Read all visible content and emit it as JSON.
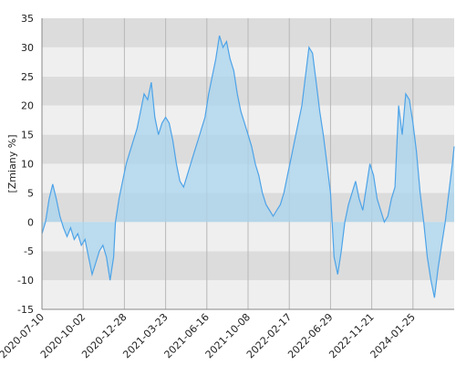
{
  "chart_data": {
    "type": "area",
    "ylabel": "[Zmiany %]",
    "xlabel": "",
    "ylim": [
      -15,
      35
    ],
    "yticks": [
      -15,
      -10,
      -5,
      0,
      5,
      10,
      15,
      20,
      25,
      30,
      35
    ],
    "xticks": [
      "2020-07-10",
      "2020-10-02",
      "2020-12-28",
      "2021-03-23",
      "2021-06-16",
      "2021-10-08",
      "2022-02-17",
      "2022-06-29",
      "2022-11-21",
      "2024-01-25"
    ],
    "grid": true,
    "colors": {
      "line": "#4da3e8",
      "fill": "#a9d4ee",
      "band_light": "#efefef",
      "band_dark": "#dcdcdc",
      "vgrid": "#b8b8b8"
    },
    "series": [
      {
        "points": [
          [
            0,
            -2
          ],
          [
            2,
            0
          ],
          [
            4,
            4
          ],
          [
            6,
            6.5
          ],
          [
            8,
            4
          ],
          [
            10,
            1
          ],
          [
            12,
            -1
          ],
          [
            14,
            -2.5
          ],
          [
            16,
            -1
          ],
          [
            18,
            -3
          ],
          [
            20,
            -2
          ],
          [
            22,
            -4
          ],
          [
            24,
            -3
          ],
          [
            26,
            -6
          ],
          [
            28,
            -9
          ],
          [
            30,
            -7
          ],
          [
            32,
            -5
          ],
          [
            34,
            -4
          ],
          [
            36,
            -6
          ],
          [
            38,
            -10
          ],
          [
            40,
            -6
          ],
          [
            41,
            0
          ],
          [
            43,
            4
          ],
          [
            45,
            7
          ],
          [
            47,
            10
          ],
          [
            49,
            12
          ],
          [
            51,
            14
          ],
          [
            53,
            16
          ],
          [
            55,
            19
          ],
          [
            57,
            22
          ],
          [
            59,
            21
          ],
          [
            61,
            24
          ],
          [
            63,
            18
          ],
          [
            65,
            15
          ],
          [
            67,
            17
          ],
          [
            69,
            18
          ],
          [
            71,
            17
          ],
          [
            73,
            14
          ],
          [
            75,
            10
          ],
          [
            77,
            7
          ],
          [
            79,
            6
          ],
          [
            81,
            8
          ],
          [
            83,
            10
          ],
          [
            85,
            12
          ],
          [
            87,
            14
          ],
          [
            89,
            16
          ],
          [
            91,
            18
          ],
          [
            93,
            22
          ],
          [
            95,
            25
          ],
          [
            97,
            28
          ],
          [
            99,
            32
          ],
          [
            101,
            30
          ],
          [
            103,
            31
          ],
          [
            105,
            28
          ],
          [
            107,
            26
          ],
          [
            109,
            22
          ],
          [
            111,
            19
          ],
          [
            113,
            17
          ],
          [
            115,
            15
          ],
          [
            117,
            13
          ],
          [
            119,
            10
          ],
          [
            121,
            8
          ],
          [
            123,
            5
          ],
          [
            125,
            3
          ],
          [
            127,
            2
          ],
          [
            129,
            1
          ],
          [
            131,
            2
          ],
          [
            133,
            3
          ],
          [
            135,
            5
          ],
          [
            137,
            8
          ],
          [
            139,
            11
          ],
          [
            141,
            14
          ],
          [
            143,
            17
          ],
          [
            145,
            20
          ],
          [
            147,
            25
          ],
          [
            149,
            30
          ],
          [
            151,
            29
          ],
          [
            153,
            24
          ],
          [
            155,
            19
          ],
          [
            157,
            15
          ],
          [
            159,
            10
          ],
          [
            161,
            5
          ],
          [
            163,
            -6
          ],
          [
            165,
            -9
          ],
          [
            167,
            -5
          ],
          [
            169,
            0
          ],
          [
            171,
            3
          ],
          [
            173,
            5
          ],
          [
            175,
            7
          ],
          [
            177,
            4
          ],
          [
            179,
            2
          ],
          [
            181,
            6
          ],
          [
            183,
            10
          ],
          [
            185,
            8
          ],
          [
            187,
            4
          ],
          [
            189,
            2
          ],
          [
            191,
            0
          ],
          [
            193,
            1
          ],
          [
            195,
            4
          ],
          [
            197,
            6
          ],
          [
            199,
            20
          ],
          [
            201,
            15
          ],
          [
            203,
            22
          ],
          [
            205,
            21
          ],
          [
            207,
            17
          ],
          [
            209,
            12
          ],
          [
            211,
            5
          ],
          [
            213,
            0
          ],
          [
            215,
            -6
          ],
          [
            217,
            -10
          ],
          [
            219,
            -13
          ],
          [
            221,
            -8
          ],
          [
            223,
            -4
          ],
          [
            225,
            0
          ],
          [
            227,
            5
          ],
          [
            229,
            10
          ],
          [
            230,
            13
          ]
        ]
      }
    ]
  }
}
